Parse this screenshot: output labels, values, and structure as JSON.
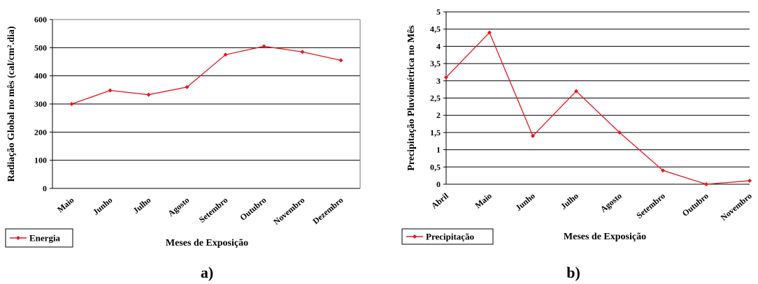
{
  "colors": {
    "series": "#e8161c",
    "grid": "#000000",
    "axis": "#7a7a7a"
  },
  "chart_data": [
    {
      "type": "line",
      "caption": "a)",
      "categories": [
        "Maio",
        "Junho",
        "Julho",
        "Agosto",
        "Setembro",
        "Outubro",
        "Novembro",
        "Dezembro"
      ],
      "series": [
        {
          "name": "Energia",
          "values": [
            300,
            348,
            333,
            360,
            475,
            505,
            485,
            455
          ]
        }
      ],
      "xlabel": "Meses de Exposição",
      "ylabel": "Radiação Global no mês (cal/cm².dia)",
      "ylim": [
        0,
        600
      ],
      "yticks": [
        "0",
        "100",
        "200",
        "300",
        "400",
        "500",
        "600"
      ],
      "grid": true,
      "legend": "bottom-left"
    },
    {
      "type": "line",
      "caption": "b)",
      "categories": [
        "Abril",
        "Maio",
        "Junho",
        "Julho",
        "Agosto",
        "Setembro",
        "Outubro",
        "Novembro"
      ],
      "series": [
        {
          "name": "Precipitação",
          "values": [
            3.1,
            4.4,
            1.4,
            2.7,
            1.5,
            0.4,
            0.0,
            0.1
          ]
        }
      ],
      "xlabel": "Meses de Exposição",
      "ylabel": "Precipitação Pluviométrica no Mês",
      "ylim": [
        0,
        5
      ],
      "yticks": [
        "0",
        "0,5",
        "1",
        "1,5",
        "2",
        "2,5",
        "3",
        "3,5",
        "4",
        "4,5",
        "5"
      ],
      "grid": true,
      "legend": "bottom-left"
    }
  ]
}
